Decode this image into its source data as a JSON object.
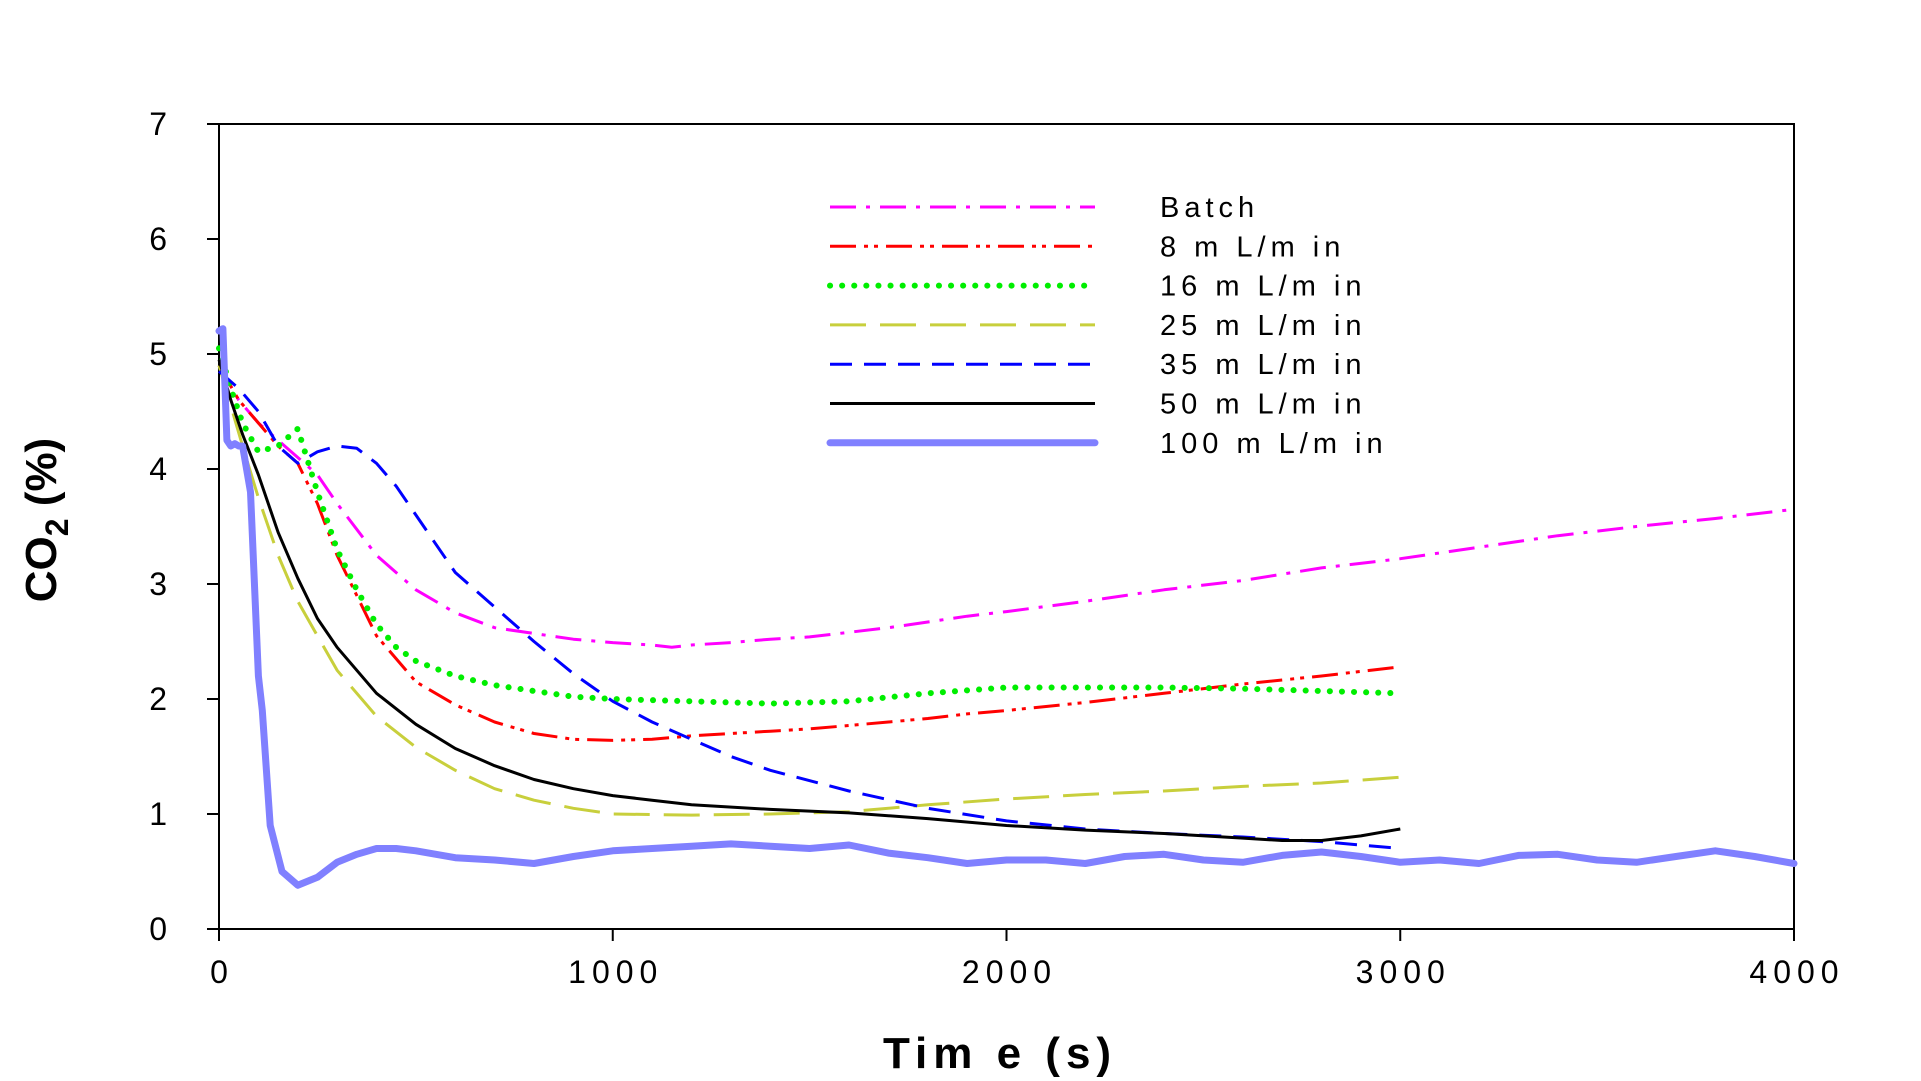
{
  "chart_data": {
    "type": "line",
    "xlabel": "Tim e (s)",
    "ylabel": "CO2 (%)",
    "ylabel_main": "CO",
    "ylabel_sub": "2",
    "ylabel_rest": " (%)",
    "xlim": [
      0,
      4000
    ],
    "ylim": [
      0,
      7
    ],
    "x_ticks": [
      0,
      1000,
      2000,
      3000,
      4000
    ],
    "y_ticks": [
      0,
      1,
      2,
      3,
      4,
      5,
      6,
      7
    ],
    "grid": false,
    "legend_position": "top-center",
    "series": [
      {
        "name": "Batch",
        "color": "#ff00ff",
        "style": "dashdot",
        "x": [
          0,
          50,
          100,
          150,
          200,
          250,
          300,
          400,
          500,
          600,
          700,
          800,
          900,
          1000,
          1100,
          1150,
          1200,
          1300,
          1400,
          1500,
          1600,
          1700,
          1800,
          1900,
          2000,
          2200,
          2400,
          2600,
          2800,
          3000,
          3200,
          3400,
          3600,
          3800,
          4000
        ],
        "y": [
          4.9,
          4.6,
          4.4,
          4.25,
          4.1,
          3.95,
          3.7,
          3.25,
          2.95,
          2.75,
          2.62,
          2.57,
          2.52,
          2.49,
          2.47,
          2.45,
          2.47,
          2.49,
          2.52,
          2.54,
          2.58,
          2.62,
          2.67,
          2.72,
          2.76,
          2.85,
          2.95,
          3.03,
          3.14,
          3.22,
          3.32,
          3.42,
          3.5,
          3.57,
          3.65
        ]
      },
      {
        "name": "8  m L/m in",
        "color": "#ff0000",
        "style": "dashdotdot",
        "x": [
          0,
          50,
          100,
          150,
          200,
          250,
          300,
          400,
          500,
          600,
          700,
          800,
          900,
          1000,
          1100,
          1200,
          1300,
          1400,
          1500,
          1600,
          1700,
          1800,
          1900,
          2000,
          2200,
          2400,
          2600,
          2800,
          3000
        ],
        "y": [
          4.9,
          4.6,
          4.4,
          4.2,
          4.05,
          3.7,
          3.25,
          2.55,
          2.15,
          1.95,
          1.8,
          1.7,
          1.65,
          1.64,
          1.65,
          1.68,
          1.7,
          1.72,
          1.74,
          1.77,
          1.8,
          1.83,
          1.87,
          1.9,
          1.97,
          2.05,
          2.13,
          2.2,
          2.28
        ]
      },
      {
        "name": "16  m L/m in",
        "color": "#00ee00",
        "style": "dotted",
        "x": [
          0,
          30,
          60,
          100,
          150,
          200,
          250,
          300,
          350,
          400,
          450,
          500,
          600,
          700,
          800,
          900,
          1000,
          1200,
          1400,
          1600,
          1800,
          2000,
          2200,
          2400,
          2600,
          2800,
          3000
        ],
        "y": [
          5.05,
          4.7,
          4.4,
          4.15,
          4.2,
          4.35,
          3.8,
          3.3,
          2.95,
          2.65,
          2.45,
          2.33,
          2.2,
          2.12,
          2.07,
          2.02,
          2.0,
          1.98,
          1.96,
          1.98,
          2.05,
          2.1,
          2.1,
          2.1,
          2.09,
          2.07,
          2.05
        ]
      },
      {
        "name": "25  m L/m in",
        "color": "#c8cf3c",
        "style": "longdash",
        "x": [
          0,
          30,
          60,
          100,
          150,
          200,
          250,
          300,
          400,
          500,
          600,
          700,
          800,
          900,
          1000,
          1200,
          1400,
          1600,
          1800,
          2000,
          2200,
          2400,
          2600,
          2800,
          3000
        ],
        "y": [
          4.9,
          4.55,
          4.2,
          3.75,
          3.25,
          2.85,
          2.55,
          2.25,
          1.85,
          1.58,
          1.38,
          1.22,
          1.12,
          1.05,
          1.0,
          0.99,
          1.0,
          1.02,
          1.08,
          1.13,
          1.17,
          1.2,
          1.24,
          1.27,
          1.32
        ]
      },
      {
        "name": "35  m L/m in",
        "color": "#0000ff",
        "style": "dashed",
        "x": [
          0,
          50,
          100,
          150,
          200,
          250,
          300,
          350,
          400,
          450,
          500,
          550,
          600,
          700,
          800,
          900,
          1000,
          1100,
          1200,
          1300,
          1400,
          1600,
          1800,
          2000,
          2200,
          2400,
          2600,
          2800,
          3000
        ],
        "y": [
          4.85,
          4.7,
          4.5,
          4.2,
          4.05,
          4.15,
          4.2,
          4.18,
          4.05,
          3.85,
          3.6,
          3.35,
          3.1,
          2.8,
          2.5,
          2.22,
          1.98,
          1.8,
          1.65,
          1.5,
          1.38,
          1.2,
          1.05,
          0.94,
          0.87,
          0.83,
          0.8,
          0.76,
          0.7
        ]
      },
      {
        "name": "50  m L/m in",
        "color": "#000000",
        "style": "solid",
        "x": [
          0,
          30,
          60,
          100,
          150,
          200,
          250,
          300,
          400,
          500,
          600,
          700,
          800,
          900,
          1000,
          1100,
          1200,
          1400,
          1600,
          1800,
          2000,
          2200,
          2400,
          2600,
          2700,
          2800,
          2900,
          3000
        ],
        "y": [
          4.95,
          4.6,
          4.3,
          3.95,
          3.45,
          3.05,
          2.7,
          2.45,
          2.05,
          1.78,
          1.57,
          1.42,
          1.3,
          1.22,
          1.16,
          1.12,
          1.08,
          1.04,
          1.01,
          0.96,
          0.9,
          0.86,
          0.83,
          0.79,
          0.77,
          0.77,
          0.81,
          0.87
        ]
      },
      {
        "name": "100  m L/m in",
        "color": "#8080ff",
        "style": "thick",
        "x": [
          0,
          10,
          20,
          30,
          40,
          50,
          60,
          80,
          100,
          110,
          130,
          160,
          200,
          250,
          300,
          350,
          400,
          450,
          500,
          600,
          700,
          800,
          900,
          1000,
          1100,
          1200,
          1300,
          1400,
          1500,
          1600,
          1700,
          1800,
          1900,
          2000,
          2100,
          2200,
          2300,
          2400,
          2500,
          2600,
          2700,
          2800,
          2900,
          3000,
          3100,
          3200,
          3300,
          3400,
          3500,
          3600,
          3700,
          3800,
          3900,
          4000
        ],
        "y": [
          5.2,
          5.22,
          4.25,
          4.2,
          4.22,
          4.2,
          4.2,
          3.8,
          2.2,
          1.9,
          0.9,
          0.5,
          0.38,
          0.45,
          0.58,
          0.65,
          0.7,
          0.7,
          0.68,
          0.62,
          0.6,
          0.57,
          0.63,
          0.68,
          0.7,
          0.72,
          0.74,
          0.72,
          0.7,
          0.73,
          0.66,
          0.62,
          0.57,
          0.6,
          0.6,
          0.57,
          0.63,
          0.65,
          0.6,
          0.58,
          0.64,
          0.67,
          0.63,
          0.58,
          0.6,
          0.57,
          0.64,
          0.65,
          0.6,
          0.58,
          0.63,
          0.68,
          0.63,
          0.57
        ]
      }
    ]
  }
}
